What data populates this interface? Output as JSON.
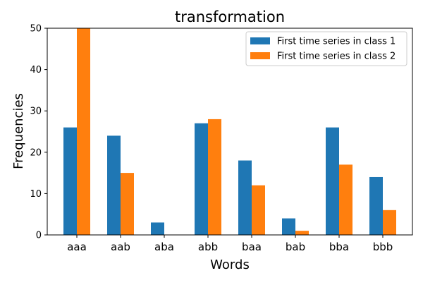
{
  "chart_data": {
    "type": "bar",
    "title": "transformation",
    "xlabel": "Words",
    "ylabel": "Frequencies",
    "categories": [
      "aaa",
      "aab",
      "aba",
      "abb",
      "baa",
      "bab",
      "bba",
      "bbb"
    ],
    "series": [
      {
        "name": "First time series in class 1",
        "color": "#1f77b4",
        "values": [
          26,
          24,
          3,
          27,
          18,
          4,
          26,
          14
        ]
      },
      {
        "name": "First time series in class 2",
        "color": "#ff7f0e",
        "values": [
          50,
          15,
          0,
          28,
          12,
          1,
          17,
          6
        ]
      }
    ],
    "ylim": [
      0,
      50
    ],
    "yticks": [
      0,
      10,
      20,
      30,
      40,
      50
    ],
    "grid": false,
    "legend_position": "top-right"
  }
}
